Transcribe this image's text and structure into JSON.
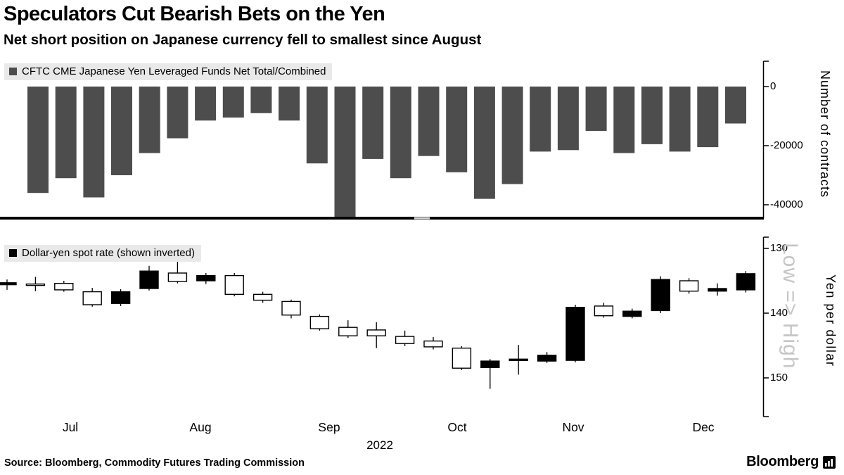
{
  "title": "Speculators Cut Bearish Bets on the Yen",
  "subtitle": "Net short position on Japanese currency fell to smallest since August",
  "source": "Source: Bloomberg, Commodity Futures Trading Commission",
  "brand": {
    "name": "Bloomberg"
  },
  "colors": {
    "bar": "#4d4d4d",
    "candle": "#000000",
    "candle_hollow": "#ffffff",
    "watermark": "#c6c6c6",
    "legend_bg": "#e9e9e9",
    "axis": "#000000"
  },
  "x_axis": {
    "months": [
      "Jul",
      "Aug",
      "Sep",
      "Oct",
      "Nov",
      "Dec"
    ],
    "year": "2022"
  },
  "top_panel": {
    "legend": "CFTC CME Japanese Yen Leveraged Funds Net Total/Combined",
    "axis_label": "Number of contracts",
    "y_ticks": [
      "0",
      "-20000",
      "-40000"
    ]
  },
  "bottom_panel": {
    "legend": "Dollar-yen spot rate (shown inverted)",
    "axis_label": "Yen per dollar",
    "watermark": "Low => High",
    "y_ticks": [
      "130",
      "140",
      "150"
    ]
  },
  "chart_data": [
    {
      "type": "bar",
      "title": "CFTC CME Japanese Yen Leveraged Funds Net Total/Combined",
      "ylabel": "Number of contracts",
      "ylim": [
        -47000,
        0
      ],
      "y_tick_values": [
        0,
        -20000,
        -40000
      ],
      "x_tick_labels": [
        "Jul",
        "Aug",
        "Sep",
        "Oct",
        "Nov",
        "Dec"
      ],
      "year": "2022",
      "frequency": "weekly",
      "values": [
        -36000,
        -31000,
        -37500,
        -30000,
        -22500,
        -17500,
        -11500,
        -10500,
        -9000,
        -11500,
        -26000,
        -45000,
        -24500,
        -31000,
        -23500,
        -29000,
        -38000,
        -33000,
        -22000,
        -21500,
        -15000,
        -22500,
        -19500,
        -22000,
        -20500,
        -12500
      ]
    },
    {
      "type": "candlestick",
      "title": "Dollar-yen spot rate (shown inverted)",
      "ylabel": "Yen per dollar",
      "axis_inverted": true,
      "ylim": [
        130,
        150
      ],
      "y_tick_values": [
        130,
        140,
        150
      ],
      "x_tick_labels": [
        "Jul",
        "Aug",
        "Sep",
        "Oct",
        "Nov",
        "Dec"
      ],
      "year": "2022",
      "frequency": "weekly",
      "candles": [
        {
          "o": 135.6,
          "c": 135.3,
          "l": 134.8,
          "h": 136.4,
          "f": 1
        },
        {
          "o": 135.7,
          "c": 135.5,
          "l": 134.4,
          "h": 136.6,
          "f": 0
        },
        {
          "o": 136.4,
          "c": 135.4,
          "l": 135.0,
          "h": 136.7,
          "f": 0
        },
        {
          "o": 138.7,
          "c": 136.7,
          "l": 136.1,
          "h": 139.0,
          "f": 0
        },
        {
          "o": 138.5,
          "c": 136.7,
          "l": 136.3,
          "h": 138.9,
          "f": 1
        },
        {
          "o": 136.2,
          "c": 133.5,
          "l": 132.7,
          "h": 136.5,
          "f": 1
        },
        {
          "o": 135.1,
          "c": 133.8,
          "l": 131.6,
          "h": 135.4,
          "f": 0
        },
        {
          "o": 135.0,
          "c": 134.2,
          "l": 133.8,
          "h": 135.5,
          "f": 1
        },
        {
          "o": 134.2,
          "c": 137.1,
          "l": 133.8,
          "h": 137.4,
          "f": 0
        },
        {
          "o": 137.1,
          "c": 138.0,
          "l": 136.7,
          "h": 138.4,
          "f": 0
        },
        {
          "o": 138.2,
          "c": 140.3,
          "l": 137.9,
          "h": 140.8,
          "f": 0
        },
        {
          "o": 140.5,
          "c": 142.4,
          "l": 140.2,
          "h": 142.7,
          "f": 0
        },
        {
          "o": 142.2,
          "c": 143.5,
          "l": 141.1,
          "h": 143.8,
          "f": 0
        },
        {
          "o": 142.6,
          "c": 143.5,
          "l": 141.4,
          "h": 145.4,
          "f": 0
        },
        {
          "o": 143.6,
          "c": 144.7,
          "l": 142.7,
          "h": 145.1,
          "f": 0
        },
        {
          "o": 144.3,
          "c": 145.2,
          "l": 143.7,
          "h": 145.6,
          "f": 0
        },
        {
          "o": 145.4,
          "c": 148.5,
          "l": 145.1,
          "h": 148.8,
          "f": 0
        },
        {
          "o": 147.4,
          "c": 148.4,
          "l": 147.1,
          "h": 151.7,
          "f": 1
        },
        {
          "o": 147.1,
          "c": 147.3,
          "l": 144.9,
          "h": 149.5,
          "f": 1
        },
        {
          "o": 146.5,
          "c": 147.4,
          "l": 146.0,
          "h": 147.7,
          "f": 1
        },
        {
          "o": 147.3,
          "c": 139.1,
          "l": 138.7,
          "h": 147.6,
          "f": 1
        },
        {
          "o": 138.9,
          "c": 140.4,
          "l": 138.4,
          "h": 140.7,
          "f": 0
        },
        {
          "o": 139.7,
          "c": 140.5,
          "l": 139.3,
          "h": 140.8,
          "f": 1
        },
        {
          "o": 139.6,
          "c": 134.8,
          "l": 134.3,
          "h": 140.0,
          "f": 1
        },
        {
          "o": 135.0,
          "c": 136.6,
          "l": 134.6,
          "h": 137.0,
          "f": 0
        },
        {
          "o": 136.2,
          "c": 136.6,
          "l": 135.4,
          "h": 137.3,
          "f": 1
        },
        {
          "o": 136.4,
          "c": 133.9,
          "l": 133.5,
          "h": 136.8,
          "f": 1
        }
      ]
    }
  ]
}
